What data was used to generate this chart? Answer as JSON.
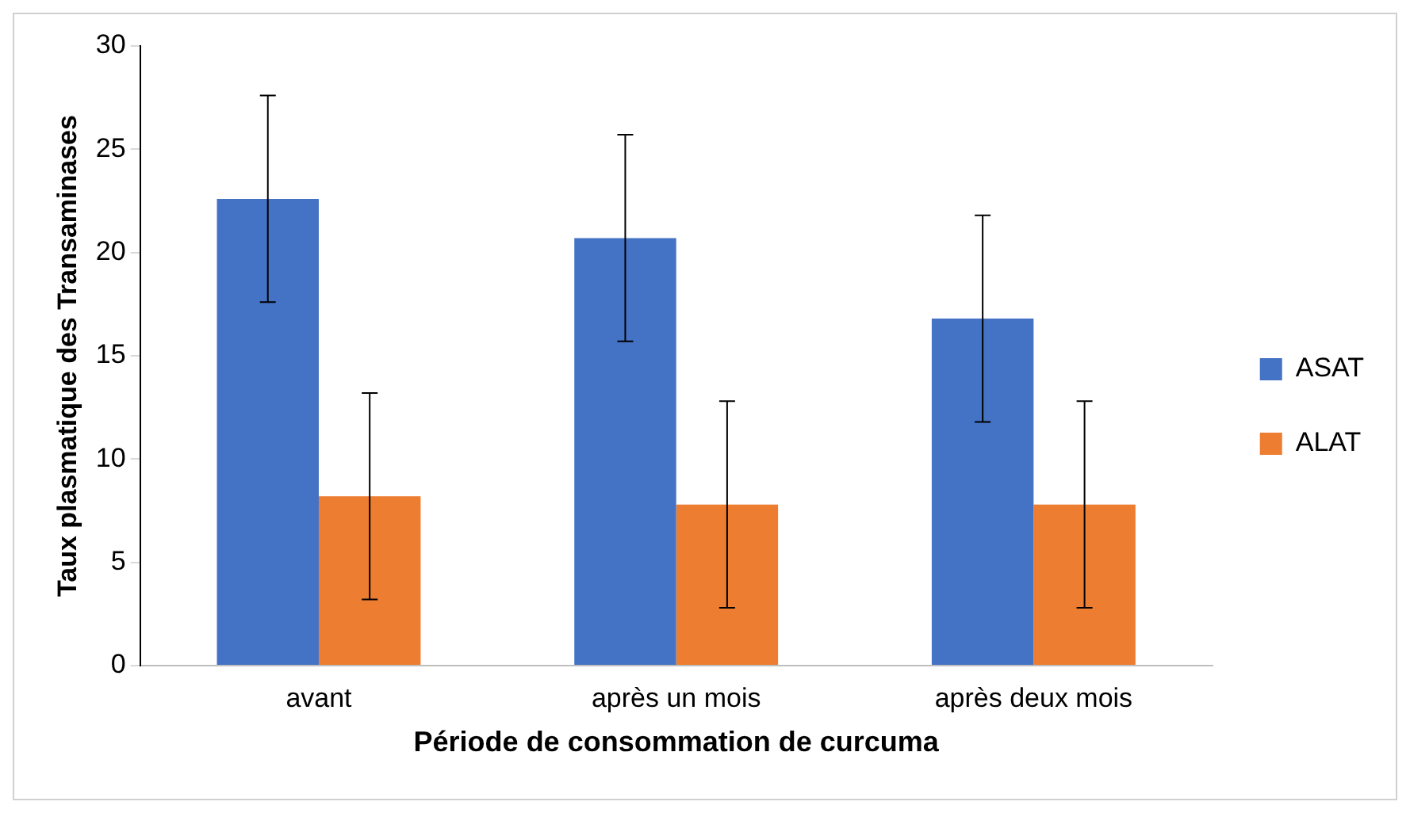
{
  "chart_data": {
    "type": "bar",
    "xlabel": "Période de consommation de curcuma",
    "ylabel": "Taux plasmatique des Transaminases",
    "categories": [
      "avant",
      "après un mois",
      "après deux mois"
    ],
    "series": [
      {
        "name": "ASAT",
        "color": "#4472c4",
        "values": [
          22.6,
          20.7,
          16.8
        ],
        "errors": [
          5,
          5,
          5
        ]
      },
      {
        "name": "ALAT",
        "color": "#ed7d31",
        "values": [
          8.2,
          7.8,
          7.8
        ],
        "errors": [
          5,
          5,
          5
        ]
      }
    ],
    "ylim": [
      0,
      30
    ],
    "yticks": [
      0,
      5,
      10,
      15,
      20,
      25,
      30
    ],
    "grid": false,
    "legend": "right"
  }
}
